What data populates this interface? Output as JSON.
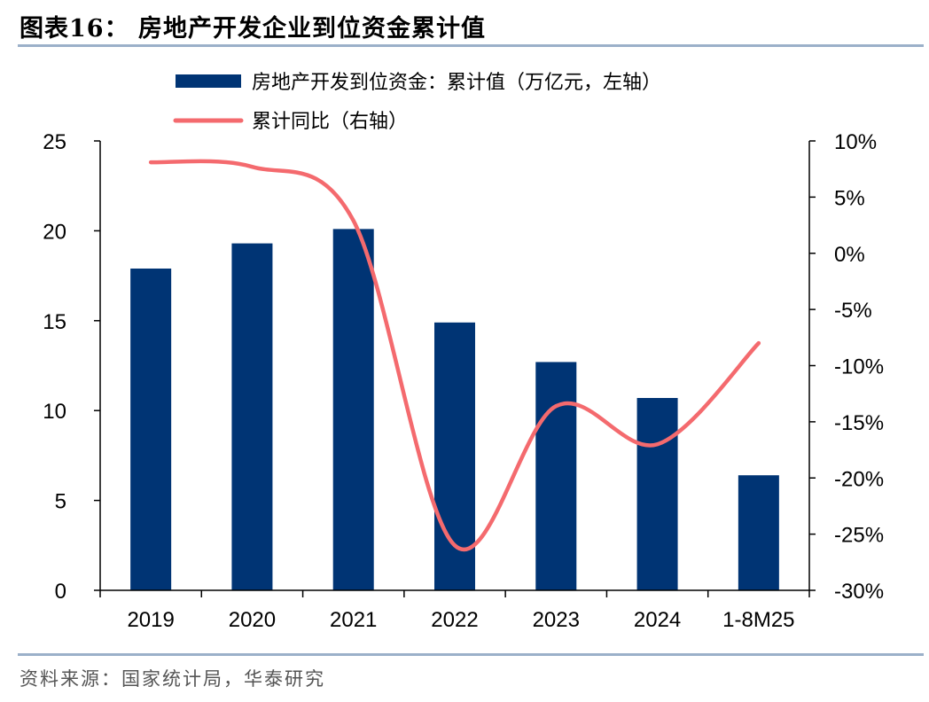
{
  "header": {
    "title": "图表16：  房地产开发企业到位资金累计值"
  },
  "footer": {
    "source": "资料来源：国家统计局，华泰研究"
  },
  "colors": {
    "bar": "#003474",
    "line": "#f46a6e",
    "rule": "#9bb0c9"
  },
  "chart_data": {
    "type": "bar",
    "categories": [
      "2019",
      "2020",
      "2021",
      "2022",
      "2023",
      "2024",
      "1-8M25"
    ],
    "series": [
      {
        "name": "房地产开发到位资金：累计值（万亿元，左轴）",
        "type": "bar",
        "axis": "left",
        "values": [
          17.9,
          19.3,
          20.1,
          14.9,
          12.7,
          10.7,
          6.4
        ]
      },
      {
        "name": "累计同比（右轴）",
        "type": "line",
        "axis": "right",
        "values": [
          8.1,
          7.7,
          2.9,
          -26.0,
          -13.6,
          -17.0,
          -8.0
        ]
      }
    ],
    "y_left": {
      "min": 0,
      "max": 25,
      "ticks": [
        "0",
        "5",
        "10",
        "15",
        "20",
        "25"
      ]
    },
    "y_right": {
      "min": -30,
      "max": 10,
      "ticks": [
        "-30%",
        "-25%",
        "-20%",
        "-15%",
        "-10%",
        "-5%",
        "0%",
        "5%",
        "10%"
      ]
    },
    "legend_position": "top-center",
    "grid": false
  }
}
